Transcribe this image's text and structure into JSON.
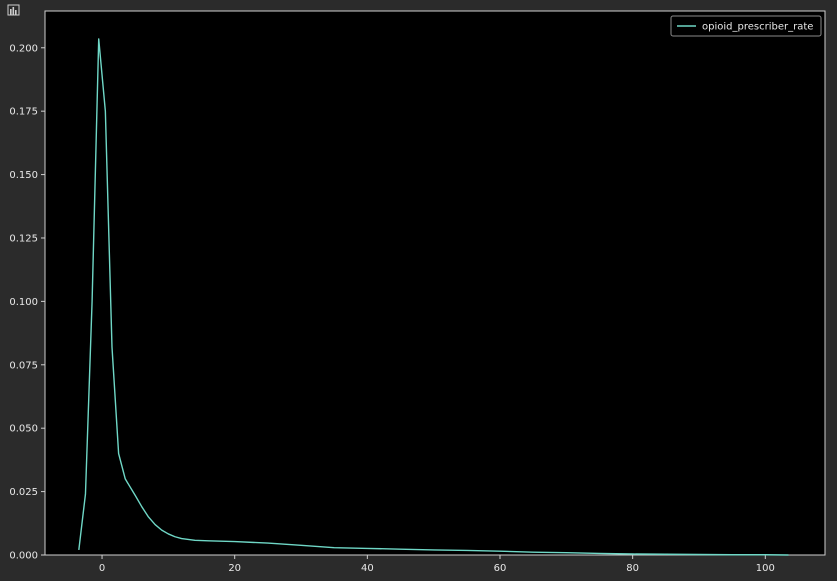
{
  "toolbar": {
    "chart_icon": "bar-chart-icon"
  },
  "colors": {
    "background": "#000000",
    "frame": "#2b2b2b",
    "axis": "#cfcfcf",
    "text": "#e8e8e8",
    "line": "#6fd7c6"
  },
  "chart_data": {
    "type": "line",
    "title": "",
    "xlabel": "",
    "ylabel": "",
    "xlim": [
      -8.6,
      109
    ],
    "ylim": [
      0,
      0.2145
    ],
    "grid": false,
    "legend_position": "top-right",
    "xticks": [
      0,
      20,
      40,
      60,
      80,
      100
    ],
    "xtick_labels": [
      "0",
      "20",
      "40",
      "60",
      "80",
      "100"
    ],
    "yticks": [
      0,
      0.025,
      0.05,
      0.075,
      0.1,
      0.125,
      0.15,
      0.175,
      0.2
    ],
    "ytick_labels": [
      "0.000",
      "0.025",
      "0.050",
      "0.075",
      "0.100",
      "0.125",
      "0.150",
      "0.175",
      "0.200"
    ],
    "series": [
      {
        "name": "opioid_prescriber_rate",
        "color": "#6fd7c6",
        "x": [
          -3.5,
          -2.5,
          -1.5,
          -0.5,
          0.5,
          1.5,
          2.5,
          3.5,
          5,
          6,
          7,
          8,
          9,
          10,
          11,
          12,
          14,
          16,
          20,
          25,
          30,
          35,
          40,
          45,
          50,
          55,
          60,
          65,
          70,
          75,
          80,
          85,
          90,
          95,
          100,
          103.5
        ],
        "y": [
          0.002,
          0.024,
          0.1,
          0.2035,
          0.175,
          0.082,
          0.04,
          0.03,
          0.0235,
          0.019,
          0.015,
          0.012,
          0.0098,
          0.0083,
          0.0072,
          0.0065,
          0.0058,
          0.0056,
          0.0053,
          0.0047,
          0.0038,
          0.0029,
          0.0026,
          0.0023,
          0.002,
          0.0018,
          0.0015,
          0.0011,
          0.0009,
          0.0006,
          0.0004,
          0.0003,
          0.0002,
          0.0001,
          0.0001,
          0.0
        ]
      }
    ]
  }
}
